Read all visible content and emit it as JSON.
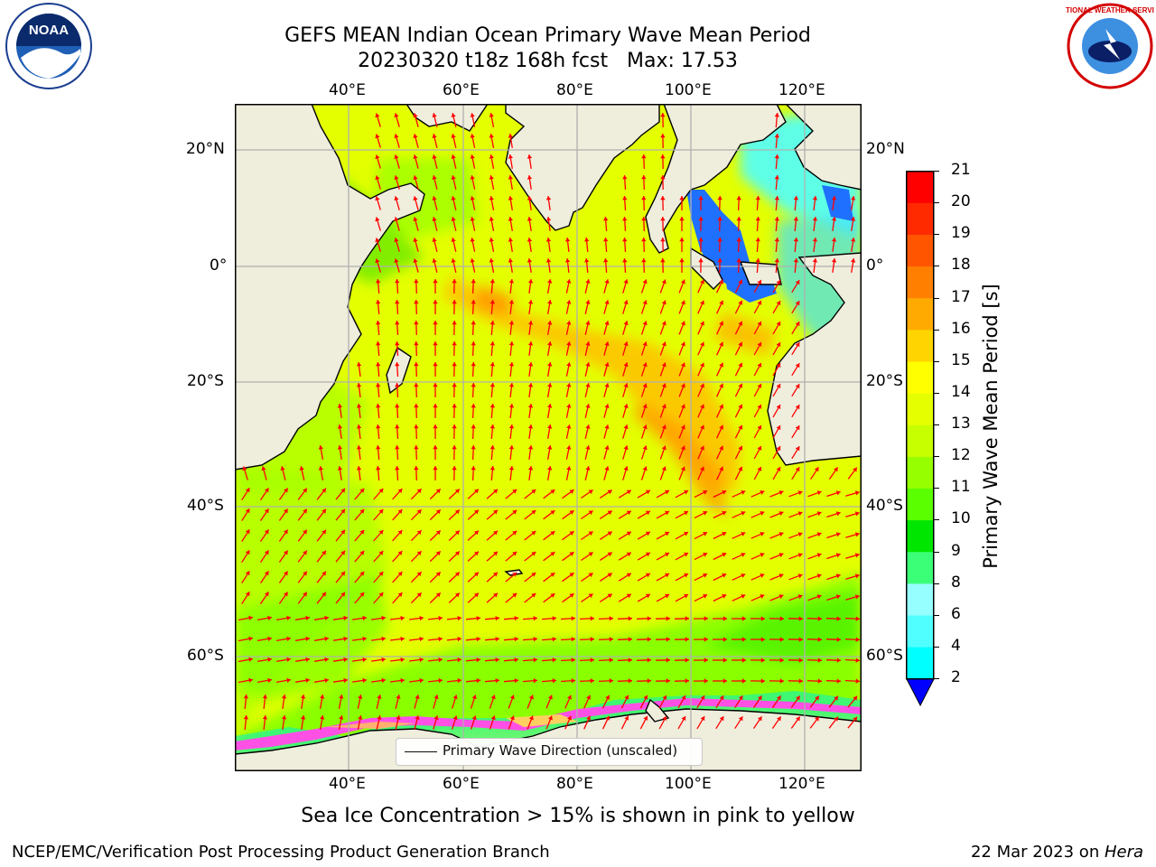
{
  "header": {
    "title_line1": "GEFS MEAN Indian Ocean Primary Wave Mean Period",
    "title_line2": "20230320 t18z 168h fcst   Max: 17.53"
  },
  "logos": {
    "left": {
      "name": "noaa-logo",
      "text": "NOAA"
    },
    "right": {
      "name": "national-weather-service-logo",
      "text": "NATIONAL WEATHER SERVICE"
    }
  },
  "map": {
    "lon_ticks_top": [
      "40°E",
      "60°E",
      "80°E",
      "100°E",
      "120°E"
    ],
    "lon_ticks_bottom": [
      "40°E",
      "60°E",
      "80°E",
      "100°E",
      "120°E"
    ],
    "lat_ticks_left": [
      "20°N",
      "0°",
      "20°S",
      "40°S",
      "60°S"
    ],
    "lat_ticks_right": [
      "20°N",
      "0°",
      "20°S",
      "40°S",
      "60°S"
    ],
    "legend_label": "Primary Wave Direction (unscaled)",
    "colors": {
      "land": "#efeddc",
      "arrow": "#ff0000",
      "grid": "#b0b0b0"
    }
  },
  "colorbar": {
    "label": "Primary Wave Mean Period [s]",
    "ticks": [
      "21",
      "20",
      "19",
      "18",
      "17",
      "16",
      "15",
      "14",
      "13",
      "12",
      "11",
      "10",
      "9",
      "8",
      "6",
      "4",
      "2"
    ],
    "colors": [
      "#ff0000",
      "#ff2a00",
      "#ff5500",
      "#ff8000",
      "#ffaa00",
      "#ffd400",
      "#ffff00",
      "#e6ff00",
      "#c8ff00",
      "#96ff00",
      "#5aff00",
      "#00e600",
      "#3cff78",
      "#96ffff",
      "#50ffff",
      "#00ffff",
      "#00c8ff",
      "#0064ff",
      "#0000ff"
    ]
  },
  "footer": {
    "note": "Sea Ice Concentration > 15% is shown in pink to yellow",
    "left": "NCEP/EMC/Verification Post Processing Product Generation Branch",
    "date": "22 Mar 2023 on ",
    "machine": "Hera"
  }
}
